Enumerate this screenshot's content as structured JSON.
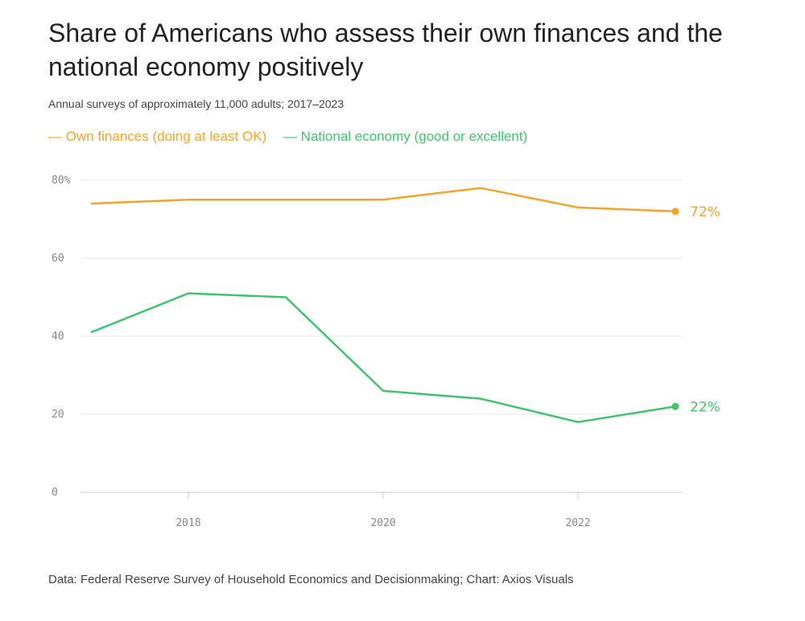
{
  "colors": {
    "own_finances": "#f2a52a",
    "national_economy": "#3ec46d"
  },
  "chart_data": {
    "type": "line",
    "title": "Share of Americans who assess their own finances and the national economy positively",
    "subtitle": "Annual surveys of approximately 11,000 adults; 2017–2023",
    "x": [
      2017,
      2018,
      2019,
      2020,
      2021,
      2022,
      2023
    ],
    "series": [
      {
        "name": "Own finances (doing at least OK)",
        "values": [
          74,
          75,
          75,
          75,
          78,
          73,
          72
        ],
        "end_label": "72%"
      },
      {
        "name": "National economy (good or excellent)",
        "values": [
          41,
          51,
          50,
          26,
          24,
          18,
          22
        ],
        "end_label": "22%"
      }
    ],
    "xticks": [
      "2018",
      "2020",
      "2022"
    ],
    "xtick_values": [
      2018,
      2020,
      2022
    ],
    "yticks": [
      "0",
      "20",
      "40",
      "60",
      "80%"
    ],
    "ytick_values": [
      0,
      20,
      40,
      60,
      80
    ],
    "ylim": [
      0,
      80
    ],
    "xlim": [
      2017,
      2023
    ],
    "grid": true,
    "legend_placement": "top-left",
    "source": "Data: Federal Reserve Survey of Household Economics and Decisionmaking; Chart: Axios Visuals"
  }
}
